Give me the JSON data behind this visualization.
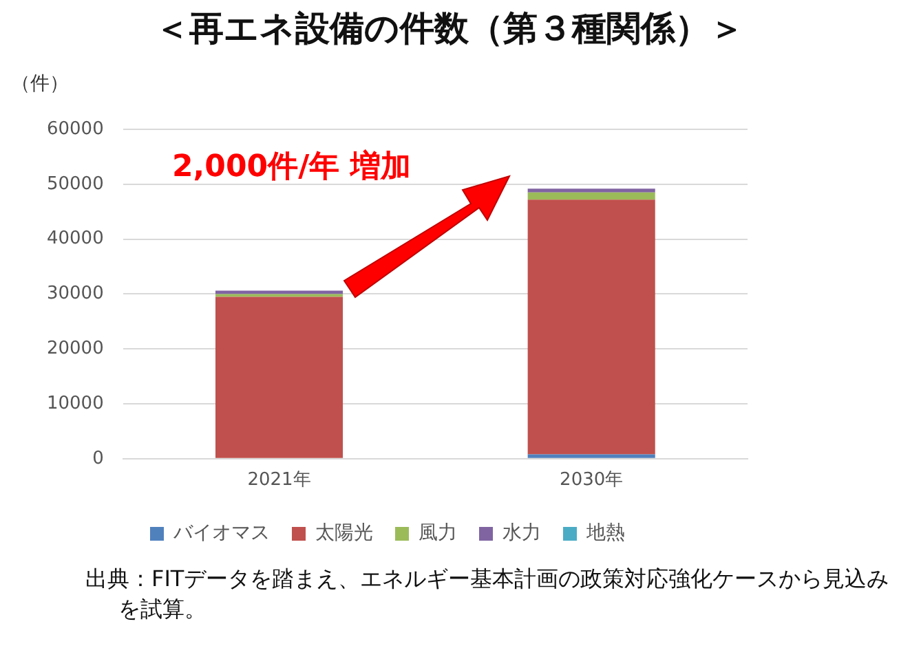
{
  "chart_data": {
    "type": "bar",
    "title": "＜再エネ設備の件数（第３種関係）＞",
    "ylabel": "（件）",
    "categories": [
      "2021年",
      "2030年"
    ],
    "stacked": true,
    "series": [
      {
        "name": "バイオマス",
        "color": "#4f81bd",
        "values": [
          null,
          800
        ]
      },
      {
        "name": "太陽光",
        "color": "#c0504d",
        "values": [
          29500,
          46400
        ]
      },
      {
        "name": "風力",
        "color": "#9bbb59",
        "values": [
          500,
          1300
        ]
      },
      {
        "name": "水力",
        "color": "#8064a2",
        "values": [
          600,
          700
        ]
      },
      {
        "name": "地熱",
        "color": "#4bacc6",
        "values": [
          null,
          null
        ]
      }
    ],
    "ylim": [
      0,
      60000
    ],
    "yticks": [
      0,
      10000,
      20000,
      30000,
      40000,
      50000,
      60000
    ],
    "grid": "y",
    "legend": "bottom",
    "annotations": [
      "2,000件/年 増加",
      "出典：FITデータを踏まえ、エネルギー基本計画の政策対応強化ケースから見込みを試算。"
    ]
  }
}
